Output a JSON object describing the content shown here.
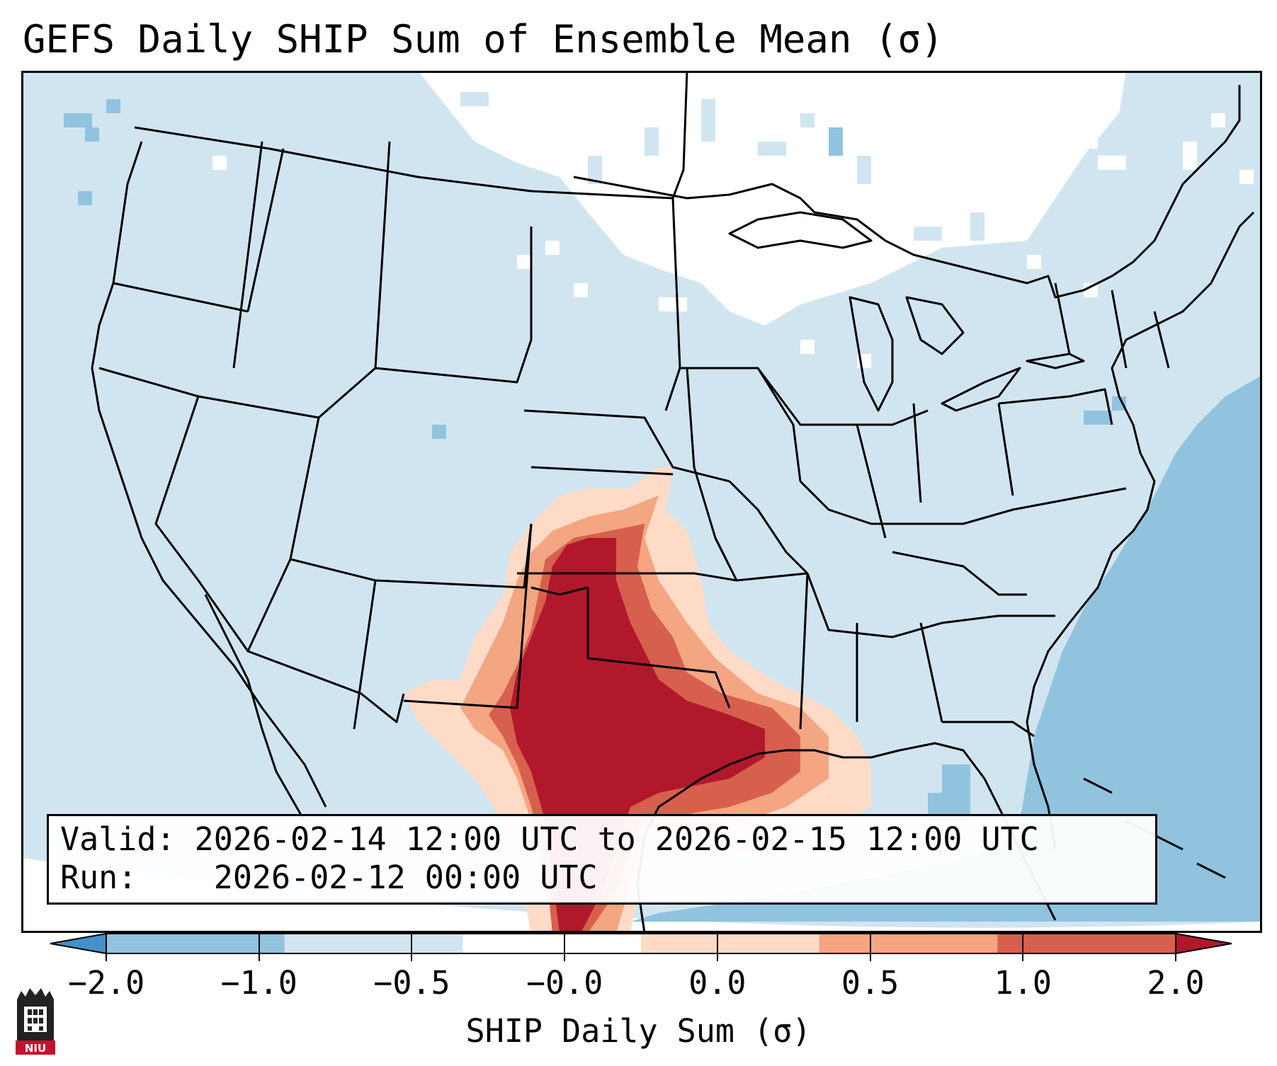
{
  "title": "GEFS Daily SHIP Sum of Ensemble Mean (σ)",
  "info": {
    "valid_label": "Valid:",
    "valid_value": "2026-02-14 12:00 UTC to 2026-02-15 12:00 UTC",
    "run_label": "Run:",
    "run_value": "2026-02-12 00:00 UTC"
  },
  "colorbar": {
    "label": "SHIP Daily Sum (σ)",
    "ticks": [
      "−2.0",
      "−1.0",
      "−0.5",
      "−0.0",
      "0.0",
      "0.5",
      "1.0",
      "2.0"
    ],
    "colors": [
      "#4291c7",
      "#91c3df",
      "#d1e5f0",
      "#ffffff",
      "#fddbc7",
      "#f4a582",
      "#d6604d",
      "#b2182b"
    ]
  },
  "logo": {
    "text": "NIU"
  },
  "colors": {
    "background_field": "#d1e5f0",
    "ocean_field": "#91c3df",
    "high_positive": "#b2182b",
    "moderate_positive": "#d6604d",
    "low_positive": "#f4a582",
    "near_zero_positive": "#fddbc7"
  },
  "chart_data": {
    "type": "heatmap",
    "title": "GEFS Daily SHIP Sum of Ensemble Mean (σ)",
    "units": "σ",
    "levels": [
      -2.0,
      -1.0,
      -0.5,
      -0.0,
      0.0,
      0.5,
      1.0,
      2.0
    ],
    "region": "Contiguous United States",
    "maximum_area": "Texas and Oklahoma, extending into the western Gulf of Mexico",
    "colorbar_extend": "both"
  }
}
